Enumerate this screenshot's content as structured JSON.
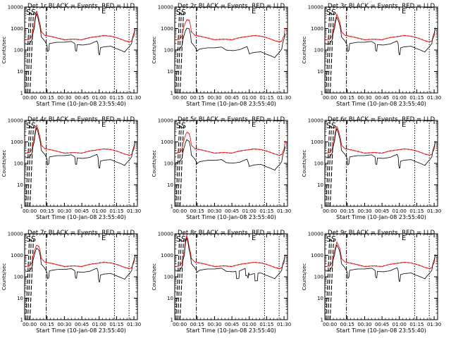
{
  "chart_data": [
    {
      "type": "line",
      "title": "Det 1r BLACK = Events, RED = LLD",
      "xlabel": "Start Time (10-Jan-08 23:55:40)",
      "ylabel": "Counts/sec",
      "yscale": "log",
      "ylim": [
        1,
        10000
      ],
      "y_ticks": [
        "1",
        "10",
        "100",
        "1000",
        "10000"
      ],
      "x_ticks": [
        "00:00",
        "00:15",
        "00:30",
        "00:45",
        "01:00",
        "01:15",
        "01:30"
      ],
      "events_variant": "gaps",
      "events_level": 1,
      "series": [
        {
          "name": "BLACK = Events",
          "color": "#000000"
        },
        {
          "name": "RED = LLD",
          "color": "#e00000"
        }
      ]
    },
    {
      "type": "line",
      "title": "Det 2r BLACK = Events, RED = LLD",
      "xlabel": "Start Time (10-Jan-08 23:55:40)",
      "ylabel": "Counts/sec",
      "yscale": "log",
      "ylim": [
        1,
        10000
      ],
      "y_ticks": [
        "1",
        "10",
        "100",
        "1000",
        "10000"
      ],
      "x_ticks": [
        "00:00",
        "00:15",
        "00:30",
        "00:45",
        "01:00",
        "01:15",
        "01:30"
      ],
      "events_variant": "low",
      "events_level": 0.55,
      "series": [
        {
          "name": "BLACK = Events",
          "color": "#000000"
        },
        {
          "name": "RED = LLD",
          "color": "#e00000"
        }
      ]
    },
    {
      "type": "line",
      "title": "Det 3r BLACK = Events, RED = LLD",
      "xlabel": "Start Time (10-Jan-08 23:55:40)",
      "ylabel": "Counts/sec",
      "yscale": "log",
      "ylim": [
        1,
        10000
      ],
      "y_ticks": [
        "1",
        "10",
        "100",
        "1000",
        "10000"
      ],
      "x_ticks": [
        "00:00",
        "00:15",
        "00:30",
        "00:45",
        "01:00",
        "01:15",
        "01:30"
      ],
      "events_variant": "gaps",
      "events_level": 1,
      "series": [
        {
          "name": "BLACK = Events",
          "color": "#000000"
        },
        {
          "name": "RED = LLD",
          "color": "#e00000"
        }
      ]
    },
    {
      "type": "line",
      "title": "Det 4r BLACK = Events, RED = LLD",
      "xlabel": "Start Time (10-Jan-08 23:55:40)",
      "ylabel": "Counts/sec",
      "yscale": "log",
      "ylim": [
        1,
        10000
      ],
      "y_ticks": [
        "1",
        "10",
        "100",
        "1000",
        "10000"
      ],
      "x_ticks": [
        "00:00",
        "00:15",
        "00:30",
        "00:45",
        "01:00",
        "01:15",
        "01:30"
      ],
      "events_variant": "gaps",
      "events_level": 1,
      "series": [
        {
          "name": "BLACK = Events",
          "color": "#000000"
        },
        {
          "name": "RED = LLD",
          "color": "#e00000"
        }
      ]
    },
    {
      "type": "line",
      "title": "Det 5r BLACK = Events, RED = LLD",
      "xlabel": "Start Time (10-Jan-08 23:55:40)",
      "ylabel": "Counts/sec",
      "yscale": "log",
      "ylim": [
        1,
        10000
      ],
      "y_ticks": [
        "1",
        "10",
        "100",
        "1000",
        "10000"
      ],
      "x_ticks": [
        "00:00",
        "00:15",
        "00:30",
        "00:45",
        "01:00",
        "01:15",
        "01:30"
      ],
      "events_variant": "low",
      "events_level": 0.6,
      "series": [
        {
          "name": "BLACK = Events",
          "color": "#000000"
        },
        {
          "name": "RED = LLD",
          "color": "#e00000"
        }
      ]
    },
    {
      "type": "line",
      "title": "Det 6r BLACK = Events, RED = LLD",
      "xlabel": "Start Time (10-Jan-08 23:55:40)",
      "ylabel": "Counts/sec",
      "yscale": "log",
      "ylim": [
        1,
        10000
      ],
      "y_ticks": [
        "1",
        "10",
        "100",
        "1000",
        "10000"
      ],
      "x_ticks": [
        "00:00",
        "00:15",
        "00:30",
        "00:45",
        "01:00",
        "01:15",
        "01:30"
      ],
      "events_variant": "gaps",
      "events_level": 1,
      "series": [
        {
          "name": "BLACK = Events",
          "color": "#000000"
        },
        {
          "name": "RED = LLD",
          "color": "#e00000"
        }
      ]
    },
    {
      "type": "line",
      "title": "Det 7r BLACK = Events, RED = LLD",
      "xlabel": "Start Time (10-Jan-08 23:55:40)",
      "ylabel": "Counts/sec",
      "yscale": "log",
      "ylim": [
        1,
        10000
      ],
      "y_ticks": [
        "1",
        "10",
        "100",
        "1000",
        "10000"
      ],
      "x_ticks": [
        "00:00",
        "00:15",
        "00:30",
        "00:45",
        "01:00",
        "01:15",
        "01:30"
      ],
      "events_variant": "gaps",
      "events_level": 0.95,
      "series": [
        {
          "name": "BLACK = Events",
          "color": "#000000"
        },
        {
          "name": "RED = LLD",
          "color": "#e00000"
        }
      ]
    },
    {
      "type": "line",
      "title": "Det 8r BLACK = Events, RED = LLD",
      "xlabel": "Start Time (10-Jan-08 23:55:40)",
      "ylabel": "Counts/sec",
      "yscale": "log",
      "ylim": [
        1,
        10000
      ],
      "y_ticks": [
        "1",
        "10",
        "100",
        "1000",
        "10000"
      ],
      "x_ticks": [
        "00:00",
        "00:15",
        "00:30",
        "00:45",
        "01:00",
        "01:15",
        "01:30"
      ],
      "events_variant": "dropouts",
      "events_level": 1,
      "series": [
        {
          "name": "BLACK = Events",
          "color": "#000000"
        },
        {
          "name": "RED = LLD",
          "color": "#e00000"
        }
      ]
    },
    {
      "type": "line",
      "title": "Det 9r BLACK = Events, RED = LLD",
      "xlabel": "Start Time (10-Jan-08 23:55:40)",
      "ylabel": "Counts/sec",
      "yscale": "log",
      "ylim": [
        1,
        10000
      ],
      "y_ticks": [
        "1",
        "10",
        "100",
        "1000",
        "10000"
      ],
      "x_ticks": [
        "00:00",
        "00:15",
        "00:30",
        "00:45",
        "01:00",
        "01:15",
        "01:30"
      ],
      "events_variant": "gaps",
      "events_level": 1,
      "series": [
        {
          "name": "BLACK = Events",
          "color": "#000000"
        },
        {
          "name": "RED = LLD",
          "color": "#e00000"
        }
      ]
    }
  ],
  "colors": {
    "events": "#000000",
    "lld": "#e00000",
    "axes": "#000000",
    "background": "#ffffff"
  }
}
